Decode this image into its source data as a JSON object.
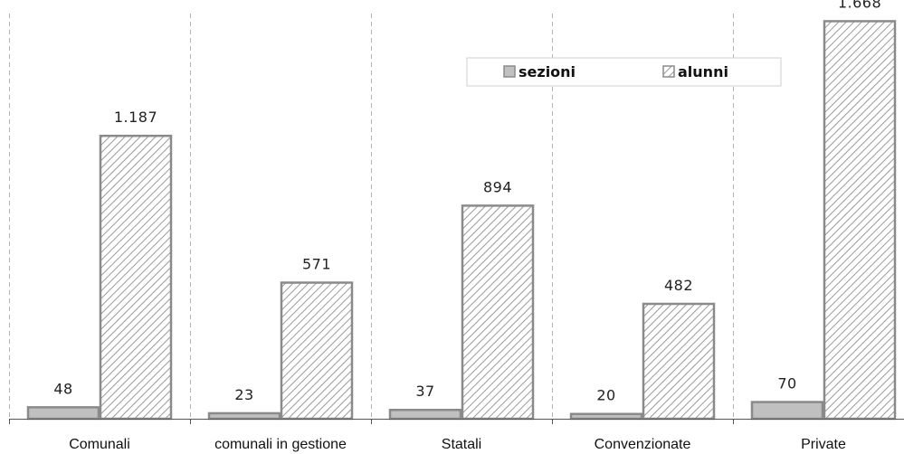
{
  "chart_data": {
    "type": "bar",
    "categories": [
      "Comunali",
      "comunali in gestione",
      "Statali",
      "Convenzionate",
      "Private"
    ],
    "series": [
      {
        "name": "sezioni",
        "values": [
          48,
          23,
          37,
          20,
          70
        ],
        "labels": [
          "48",
          "23",
          "37",
          "20",
          "70"
        ],
        "fill": "#c0c0c0",
        "stroke": "#8a8a8a",
        "pattern": "solid"
      },
      {
        "name": "alunni",
        "values": [
          1187,
          571,
          894,
          482,
          1668
        ],
        "labels": [
          "1.187",
          "571",
          "894",
          "482",
          "1.668"
        ],
        "fill": "#ffffff",
        "stroke": "#8a8a8a",
        "pattern": "diagonal-hatch"
      }
    ],
    "title": "",
    "xlabel": "",
    "ylabel": "",
    "ylim": [
      0,
      1700
    ],
    "grid": "vertical dashed category separators",
    "legend": {
      "position": "top-right",
      "items": [
        "sezioni",
        "alunni"
      ]
    },
    "colors": {
      "axis": "#555555",
      "gridline": "#b3b3b3",
      "hatch": "#9a9a9a"
    }
  }
}
